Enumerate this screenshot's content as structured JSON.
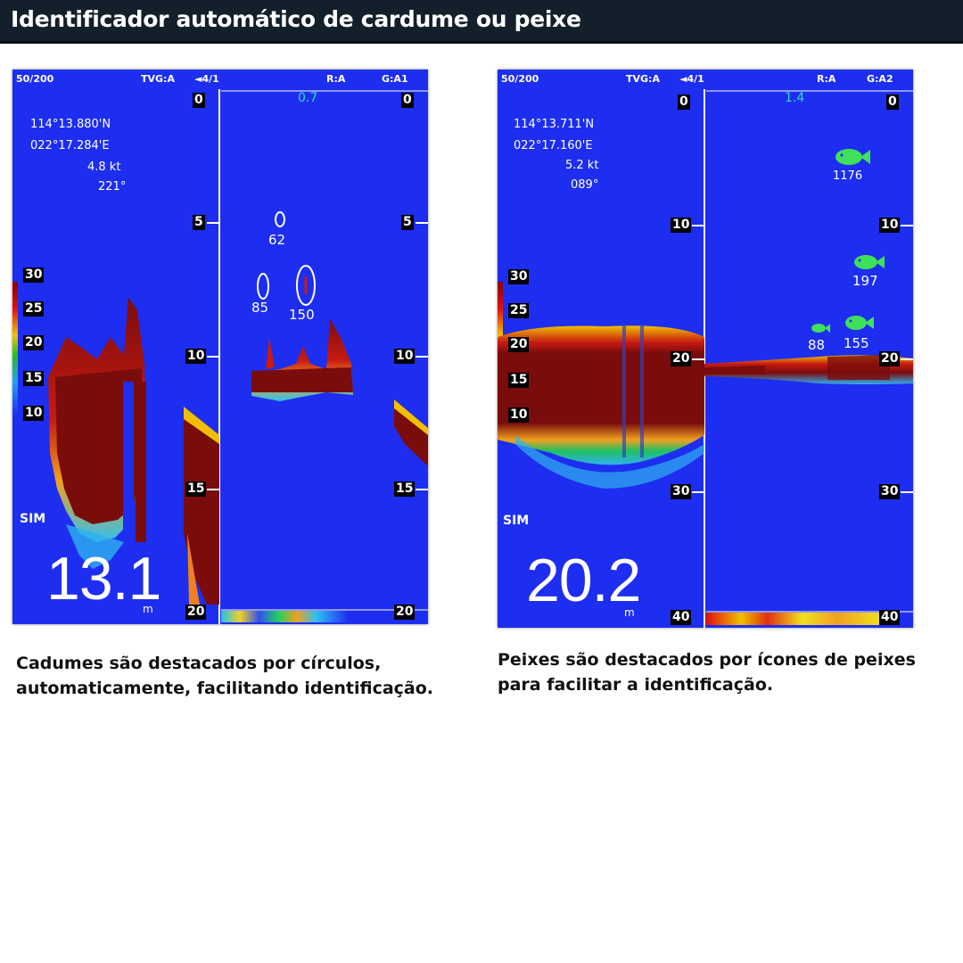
{
  "header": {
    "title": "Identificador automático de cardume ou peixe"
  },
  "left_screen": {
    "status": {
      "range": "50/200",
      "tvg": "TVG:A",
      "mode": "◄4/1",
      "r": "R:A",
      "g": "G:A1"
    },
    "position": {
      "lat": "114°13.880'N",
      "lon": "022°17.284'E",
      "speed": "4.8 kt",
      "heading": "221°"
    },
    "depth": {
      "value": "13.1",
      "unit": "m"
    },
    "sim": "SIM",
    "shade_scale": [
      "30",
      "25",
      "20",
      "15",
      "10"
    ],
    "scale_left": [
      "0",
      "5",
      "10",
      "15",
      "20"
    ],
    "scale_right": [
      "0",
      "5",
      "10",
      "15",
      "20"
    ],
    "gain_value": "0.7",
    "school_labels": [
      "62",
      "85",
      "150"
    ]
  },
  "right_screen": {
    "status": {
      "range": "50/200",
      "tvg": "TVG:A",
      "mode": "◄4/1",
      "r": "R:A",
      "g": "G:A2"
    },
    "position": {
      "lat": "114°13.711'N",
      "lon": "022°17.160'E",
      "speed": "5.2 kt",
      "heading": "089°"
    },
    "depth": {
      "value": "20.2",
      "unit": "m"
    },
    "sim": "SIM",
    "shade_scale": [
      "30",
      "25",
      "20",
      "15",
      "10"
    ],
    "scale_left": [
      "0",
      "10",
      "20",
      "30",
      "40"
    ],
    "scale_right": [
      "0",
      "10",
      "20",
      "30",
      "40"
    ],
    "gain_value": "1.4",
    "fish_labels": [
      "1176",
      "197",
      "88",
      "155"
    ]
  },
  "captions": {
    "left": [
      "Cadumes são destacados por círculos,",
      "automaticamente, facilitando identificação."
    ],
    "right": [
      "Peixes são destacados por ícones de peixes",
      "para facilitar a identificação."
    ]
  },
  "colors": {
    "sonar_bg": "#1d2ef0",
    "echo_strong": "#7a0c0c",
    "fish_icon": "#3fe05a",
    "title_bg": "#13202c"
  }
}
